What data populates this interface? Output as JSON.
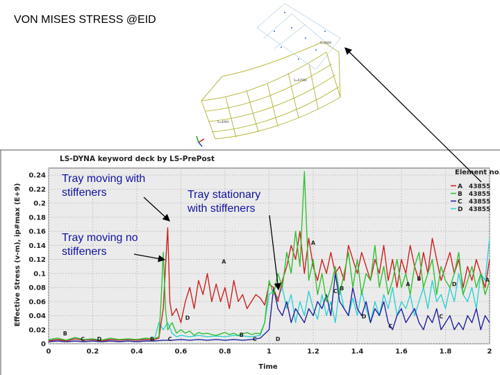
{
  "slide": {
    "title": "VON MISES STRESS @EID",
    "callouts": {
      "tray_moving_with": "Tray moving with stiffeners",
      "tray_stationary": "Tray stationary with stiffeners",
      "tray_moving_no": "Tray moving no stiffeners"
    },
    "model_labels": [
      "S=0000",
      "S=67000",
      "S=4494"
    ],
    "colors": {
      "callout_text": "#1010a0",
      "mesh": "#b8b840",
      "plot_background": "#ebebeb"
    }
  },
  "chart_data": {
    "type": "line",
    "title": "LS-DYNA keyword deck by LS-PrePost",
    "xlabel": "Time",
    "ylabel": "Effective Stress (v-m), ip#max (E+9)",
    "xlim": [
      0,
      2
    ],
    "ylim": [
      0,
      0.25
    ],
    "xticks": [
      "0",
      "0.2",
      "0.4",
      "0.6",
      "0.8",
      "1",
      "1.2",
      "1.4",
      "1.6",
      "1.8",
      "2"
    ],
    "yticks": [
      "0",
      "0.02",
      "0.04",
      "0.06",
      "0.08",
      "0.1",
      "0.12",
      "0.14",
      "0.16",
      "0.18",
      "0.2",
      "0.22",
      "0.24"
    ],
    "grid": true,
    "legend_title": "Element no.",
    "legend_position": "top-right",
    "series": [
      {
        "name": "43855",
        "marker": "A",
        "color": "#cc2020",
        "x": [
          0,
          0.04,
          0.08,
          0.12,
          0.16,
          0.2,
          0.24,
          0.28,
          0.32,
          0.36,
          0.4,
          0.44,
          0.48,
          0.5,
          0.52,
          0.53,
          0.54,
          0.55,
          0.56,
          0.58,
          0.6,
          0.62,
          0.64,
          0.66,
          0.68,
          0.7,
          0.72,
          0.74,
          0.76,
          0.78,
          0.8,
          0.82,
          0.84,
          0.86,
          0.88,
          0.9,
          0.92,
          0.94,
          0.96,
          0.98,
          1.0,
          1.02,
          1.04,
          1.06,
          1.08,
          1.1,
          1.12,
          1.14,
          1.16,
          1.18,
          1.2,
          1.22,
          1.24,
          1.26,
          1.28,
          1.3,
          1.32,
          1.34,
          1.36,
          1.38,
          1.4,
          1.42,
          1.44,
          1.46,
          1.48,
          1.5,
          1.52,
          1.54,
          1.56,
          1.58,
          1.6,
          1.62,
          1.64,
          1.66,
          1.68,
          1.7,
          1.72,
          1.74,
          1.76,
          1.78,
          1.8,
          1.82,
          1.84,
          1.86,
          1.88,
          1.9,
          1.92,
          1.94,
          1.96,
          1.98,
          2.0
        ],
        "y": [
          0.004,
          0.006,
          0.004,
          0.007,
          0.005,
          0.006,
          0.004,
          0.006,
          0.005,
          0.006,
          0.005,
          0.006,
          0.006,
          0.008,
          0.05,
          0.11,
          0.165,
          0.06,
          0.04,
          0.05,
          0.03,
          0.06,
          0.08,
          0.05,
          0.09,
          0.07,
          0.1,
          0.06,
          0.085,
          0.06,
          0.08,
          0.05,
          0.09,
          0.06,
          0.07,
          0.05,
          0.06,
          0.07,
          0.065,
          0.055,
          0.085,
          0.08,
          0.06,
          0.09,
          0.11,
          0.14,
          0.12,
          0.16,
          0.1,
          0.15,
          0.11,
          0.09,
          0.12,
          0.1,
          0.13,
          0.1,
          0.11,
          0.09,
          0.14,
          0.12,
          0.1,
          0.13,
          0.11,
          0.09,
          0.12,
          0.1,
          0.14,
          0.09,
          0.12,
          0.08,
          0.12,
          0.1,
          0.14,
          0.11,
          0.09,
          0.13,
          0.1,
          0.15,
          0.12,
          0.09,
          0.11,
          0.13,
          0.1,
          0.12,
          0.08,
          0.11,
          0.09,
          0.12,
          0.1,
          0.08,
          0.12
        ]
      },
      {
        "name": "43855",
        "marker": "B",
        "color": "#30c030",
        "x": [
          0,
          0.04,
          0.08,
          0.12,
          0.16,
          0.2,
          0.24,
          0.28,
          0.32,
          0.36,
          0.4,
          0.44,
          0.48,
          0.5,
          0.51,
          0.52,
          0.53,
          0.54,
          0.56,
          0.58,
          0.6,
          0.62,
          0.64,
          0.66,
          0.68,
          0.7,
          0.72,
          0.74,
          0.76,
          0.78,
          0.8,
          0.82,
          0.84,
          0.86,
          0.88,
          0.9,
          0.92,
          0.94,
          0.96,
          0.98,
          1.0,
          1.02,
          1.04,
          1.06,
          1.08,
          1.1,
          1.12,
          1.14,
          1.16,
          1.18,
          1.2,
          1.22,
          1.24,
          1.26,
          1.28,
          1.3,
          1.32,
          1.34,
          1.36,
          1.38,
          1.4,
          1.42,
          1.44,
          1.46,
          1.48,
          1.5,
          1.52,
          1.54,
          1.56,
          1.58,
          1.6,
          1.62,
          1.64,
          1.66,
          1.68,
          1.7,
          1.72,
          1.74,
          1.76,
          1.78,
          1.8,
          1.82,
          1.84,
          1.86,
          1.88,
          1.9,
          1.92,
          1.94,
          1.96,
          1.98,
          2.0
        ],
        "y": [
          0.006,
          0.008,
          0.005,
          0.009,
          0.006,
          0.007,
          0.005,
          0.008,
          0.006,
          0.007,
          0.006,
          0.008,
          0.007,
          0.01,
          0.06,
          0.13,
          0.05,
          0.02,
          0.03,
          0.015,
          0.02,
          0.015,
          0.018,
          0.012,
          0.016,
          0.014,
          0.015,
          0.013,
          0.012,
          0.014,
          0.016,
          0.013,
          0.015,
          0.012,
          0.014,
          0.016,
          0.013,
          0.015,
          0.014,
          0.03,
          0.09,
          0.07,
          0.1,
          0.08,
          0.13,
          0.1,
          0.16,
          0.11,
          0.245,
          0.09,
          0.12,
          0.07,
          0.1,
          0.06,
          0.08,
          0.11,
          0.07,
          0.1,
          0.13,
          0.08,
          0.12,
          0.07,
          0.1,
          0.09,
          0.14,
          0.08,
          0.11,
          0.07,
          0.09,
          0.12,
          0.08,
          0.1,
          0.07,
          0.11,
          0.13,
          0.08,
          0.1,
          0.12,
          0.07,
          0.11,
          0.09,
          0.08,
          0.1,
          0.13,
          0.07,
          0.09,
          0.11,
          0.08,
          0.1,
          0.07,
          0.09
        ]
      },
      {
        "name": "43855",
        "marker": "C",
        "color": "#2020a0",
        "x": [
          0,
          0.04,
          0.08,
          0.12,
          0.16,
          0.2,
          0.24,
          0.28,
          0.32,
          0.36,
          0.4,
          0.44,
          0.48,
          0.52,
          0.56,
          0.6,
          0.64,
          0.68,
          0.72,
          0.76,
          0.8,
          0.84,
          0.88,
          0.92,
          0.96,
          1.0,
          1.02,
          1.04,
          1.06,
          1.08,
          1.1,
          1.12,
          1.14,
          1.16,
          1.18,
          1.2,
          1.22,
          1.24,
          1.26,
          1.28,
          1.3,
          1.32,
          1.34,
          1.36,
          1.38,
          1.4,
          1.42,
          1.44,
          1.46,
          1.48,
          1.5,
          1.52,
          1.54,
          1.56,
          1.58,
          1.6,
          1.62,
          1.64,
          1.66,
          1.68,
          1.7,
          1.72,
          1.74,
          1.76,
          1.78,
          1.8,
          1.82,
          1.84,
          1.86,
          1.88,
          1.9,
          1.92,
          1.94,
          1.96,
          1.98,
          2.0
        ],
        "y": [
          0.003,
          0.004,
          0.003,
          0.004,
          0.003,
          0.004,
          0.003,
          0.004,
          0.003,
          0.004,
          0.003,
          0.004,
          0.004,
          0.005,
          0.005,
          0.006,
          0.005,
          0.006,
          0.005,
          0.006,
          0.005,
          0.006,
          0.005,
          0.006,
          0.008,
          0.02,
          0.08,
          0.05,
          0.04,
          0.06,
          0.03,
          0.05,
          0.04,
          0.03,
          0.05,
          0.04,
          0.06,
          0.05,
          0.07,
          0.04,
          0.1,
          0.06,
          0.05,
          0.04,
          0.08,
          0.05,
          0.04,
          0.06,
          0.03,
          0.05,
          0.04,
          0.06,
          0.03,
          0.02,
          0.04,
          0.05,
          0.03,
          0.04,
          0.05,
          0.03,
          0.02,
          0.04,
          0.03,
          0.05,
          0.02,
          0.03,
          0.04,
          0.02,
          0.03,
          0.02,
          0.04,
          0.03,
          0.05,
          0.02,
          0.04,
          0.03
        ]
      },
      {
        "name": "43855",
        "marker": "D",
        "color": "#30d0d0",
        "x": [
          0,
          0.04,
          0.08,
          0.12,
          0.16,
          0.2,
          0.24,
          0.28,
          0.32,
          0.36,
          0.4,
          0.44,
          0.48,
          0.5,
          0.52,
          0.54,
          0.56,
          0.58,
          0.6,
          0.64,
          0.68,
          0.72,
          0.76,
          0.8,
          0.84,
          0.88,
          0.92,
          0.96,
          0.98,
          1.0,
          1.02,
          1.04,
          1.06,
          1.08,
          1.1,
          1.12,
          1.14,
          1.16,
          1.18,
          1.2,
          1.22,
          1.24,
          1.26,
          1.28,
          1.3,
          1.32,
          1.34,
          1.36,
          1.38,
          1.4,
          1.42,
          1.44,
          1.46,
          1.48,
          1.5,
          1.52,
          1.54,
          1.56,
          1.58,
          1.6,
          1.62,
          1.64,
          1.66,
          1.68,
          1.7,
          1.72,
          1.74,
          1.76,
          1.78,
          1.8,
          1.82,
          1.84,
          1.86,
          1.88,
          1.9,
          1.92,
          1.94,
          1.96,
          1.98,
          2.0
        ],
        "y": [
          0.005,
          0.006,
          0.005,
          0.007,
          0.005,
          0.006,
          0.005,
          0.006,
          0.005,
          0.006,
          0.005,
          0.007,
          0.006,
          0.03,
          0.02,
          0.03,
          0.015,
          0.01,
          0.012,
          0.01,
          0.012,
          0.01,
          0.011,
          0.01,
          0.012,
          0.011,
          0.01,
          0.012,
          0.03,
          0.07,
          0.075,
          0.065,
          0.08,
          0.05,
          0.07,
          0.03,
          0.06,
          0.04,
          0.075,
          0.05,
          0.035,
          0.07,
          0.04,
          0.06,
          0.03,
          0.08,
          0.05,
          0.04,
          0.065,
          0.04,
          0.075,
          0.05,
          0.03,
          0.06,
          0.04,
          0.07,
          0.05,
          0.08,
          0.04,
          0.06,
          0.05,
          0.07,
          0.04,
          0.06,
          0.08,
          0.05,
          0.09,
          0.06,
          0.07,
          0.05,
          0.08,
          0.06,
          0.1,
          0.07,
          0.06,
          0.08,
          0.05,
          0.1,
          0.09,
          0.15
        ]
      }
    ],
    "curve_labels": [
      {
        "marker": "B",
        "x": 0.075,
        "y": 0.012
      },
      {
        "marker": "C",
        "x": 0.155,
        "y": 0.004
      },
      {
        "marker": "D",
        "x": 0.23,
        "y": 0.004
      },
      {
        "marker": "B",
        "x": 0.47,
        "y": 0.004
      },
      {
        "marker": "C",
        "x": 0.55,
        "y": 0.004
      },
      {
        "marker": "D",
        "x": 0.63,
        "y": 0.034
      },
      {
        "marker": "A",
        "x": 0.795,
        "y": 0.114
      },
      {
        "marker": "B",
        "x": 0.875,
        "y": 0.01
      },
      {
        "marker": "C",
        "x": 0.935,
        "y": 0.004
      },
      {
        "marker": "D",
        "x": 1.04,
        "y": 0.004
      },
      {
        "marker": "A",
        "x": 1.2,
        "y": 0.141
      },
      {
        "marker": "C",
        "x": 1.3,
        "y": 0.072
      },
      {
        "marker": "B",
        "x": 1.33,
        "y": 0.076
      },
      {
        "marker": "D",
        "x": 1.43,
        "y": 0.036
      },
      {
        "marker": "C",
        "x": 1.55,
        "y": 0.022
      },
      {
        "marker": "A",
        "x": 1.63,
        "y": 0.082
      },
      {
        "marker": "B",
        "x": 1.68,
        "y": 0.09
      },
      {
        "marker": "C",
        "x": 1.78,
        "y": 0.036
      },
      {
        "marker": "D",
        "x": 1.84,
        "y": 0.082
      },
      {
        "marker": "A",
        "x": 1.99,
        "y": 0.088
      }
    ]
  }
}
